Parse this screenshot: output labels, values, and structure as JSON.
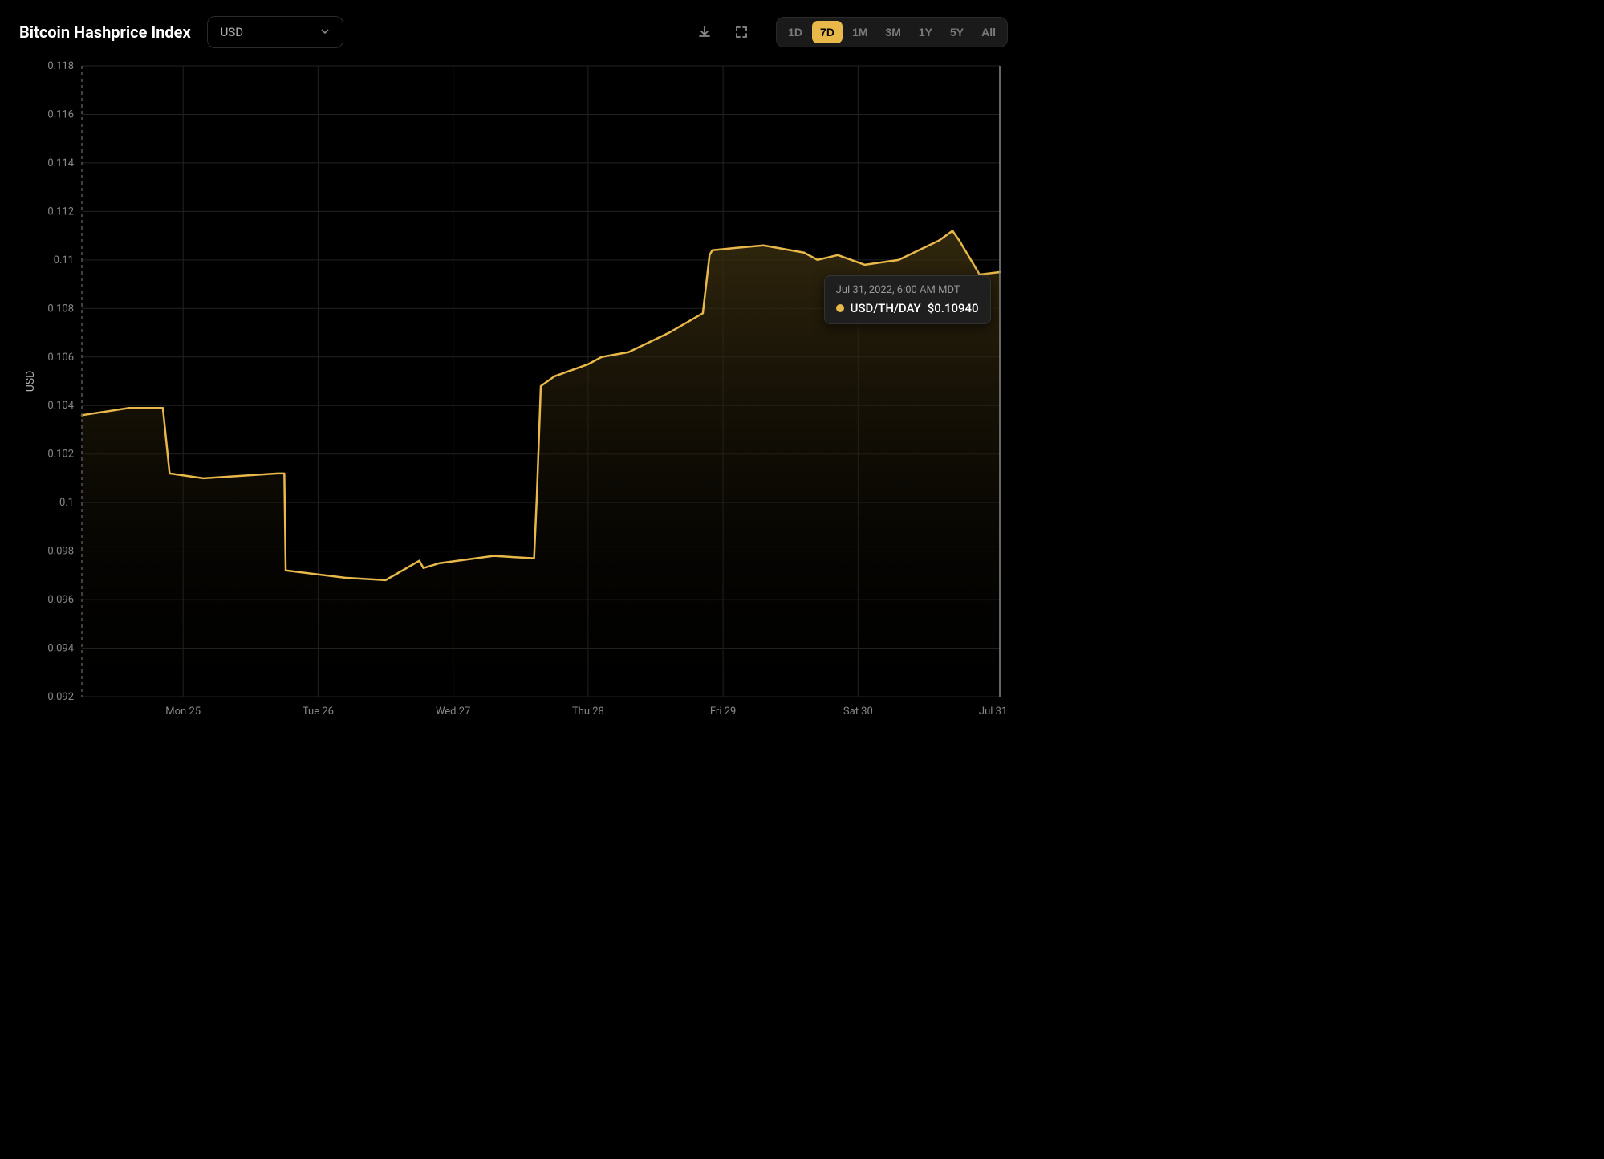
{
  "header": {
    "title": "Bitcoin Hashprice Index",
    "dropdown_selected": "USD"
  },
  "toolbar": {
    "ranges": [
      "1D",
      "7D",
      "1M",
      "3M",
      "1Y",
      "5Y",
      "All"
    ],
    "active_range_index": 1
  },
  "chart": {
    "type": "area",
    "ylabel": "USD",
    "ylim": [
      0.092,
      0.118
    ],
    "yticks": [
      0.092,
      0.094,
      0.096,
      0.098,
      0.1,
      0.102,
      0.104,
      0.106,
      0.108,
      0.11,
      0.112,
      0.114,
      0.116,
      0.118
    ],
    "xlim": [
      24.25,
      31.05
    ],
    "xticks": [
      25,
      26,
      27,
      28,
      29,
      30,
      31
    ],
    "xtick_labels": [
      "Mon 25",
      "Tue 26",
      "Wed 27",
      "Thu 28",
      "Fri 29",
      "Sat 30",
      "Jul 31"
    ],
    "series": {
      "label": "USD/TH/DAY",
      "color": "#e8b94a",
      "fill_top_color": "#3a2e10",
      "fill_bottom_color": "#0a0803",
      "fill_opacity": 0.85,
      "line_width": 2.5,
      "x": [
        24.25,
        24.6,
        24.85,
        24.9,
        25.15,
        25.7,
        25.75,
        25.76,
        26.2,
        26.5,
        26.75,
        26.78,
        26.9,
        27.3,
        27.6,
        27.62,
        27.65,
        27.75,
        28.0,
        28.1,
        28.3,
        28.6,
        28.85,
        28.9,
        28.92,
        29.1,
        29.3,
        29.6,
        29.7,
        29.85,
        30.05,
        30.3,
        30.45,
        30.6,
        30.7,
        30.75,
        30.9,
        31.05
      ],
      "y": [
        0.1036,
        0.1039,
        0.1039,
        0.1012,
        0.101,
        0.1012,
        0.1012,
        0.0972,
        0.0969,
        0.0968,
        0.0976,
        0.0973,
        0.0975,
        0.0978,
        0.0977,
        0.1002,
        0.1048,
        0.1052,
        0.1057,
        0.106,
        0.1062,
        0.107,
        0.1078,
        0.1102,
        0.1104,
        0.1105,
        0.1106,
        0.1103,
        0.11,
        0.1102,
        0.1098,
        0.11,
        0.1104,
        0.1108,
        0.1112,
        0.1108,
        0.1094,
        0.1095
      ]
    },
    "background_color": "#000000",
    "grid_color": "#222222",
    "tick_label_color": "#888888",
    "tick_label_fontsize": 13,
    "axis_title_fontsize": 14
  },
  "tooltip": {
    "date_text": "Jul 31, 2022, 6:00 AM MDT",
    "series_label": "USD/TH/DAY",
    "value_text": "$0.10940",
    "dot_color": "#e8b94a"
  }
}
